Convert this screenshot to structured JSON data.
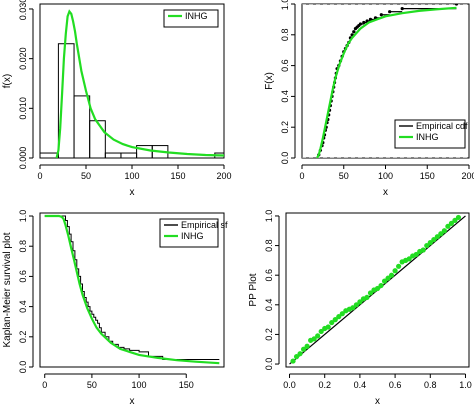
{
  "colors": {
    "fit": "#22dd22",
    "empirical": "#000000",
    "guide": "#888888",
    "point": "#000000"
  },
  "chart_data": [
    {
      "id": "density",
      "type": "histogram",
      "xlabel": "x",
      "ylabel": "f(x)",
      "xlim": [
        0,
        200
      ],
      "ylim": [
        0,
        0.031
      ],
      "xticks": [
        0,
        50,
        100,
        150,
        200
      ],
      "yticks": [
        0.0,
        0.01,
        0.02,
        0.03
      ],
      "ytick_labels": [
        "0.000",
        "0.010",
        "0.020",
        "0.030"
      ],
      "bins": [
        {
          "x0": 0,
          "x1": 20,
          "value": 0.001
        },
        {
          "x0": 20,
          "x1": 37,
          "value": 0.023
        },
        {
          "x0": 37,
          "x1": 54,
          "value": 0.0125
        },
        {
          "x0": 54,
          "x1": 71,
          "value": 0.0075
        },
        {
          "x0": 71,
          "x1": 88,
          "value": 0.001
        },
        {
          "x0": 88,
          "x1": 105,
          "value": 0.001
        },
        {
          "x0": 105,
          "x1": 122,
          "value": 0.0025
        },
        {
          "x0": 122,
          "x1": 139,
          "value": 0.0025
        },
        {
          "x0": 139,
          "x1": 156,
          "value": 0.0
        },
        {
          "x0": 156,
          "x1": 173,
          "value": 0.0
        },
        {
          "x0": 173,
          "x1": 190,
          "value": 0.0
        },
        {
          "x0": 190,
          "x1": 207,
          "value": 0.001
        }
      ],
      "fit": {
        "name": "INHG",
        "x": [
          18,
          20,
          22,
          24,
          26,
          28,
          30,
          32,
          34,
          36,
          38,
          40,
          45,
          50,
          55,
          60,
          70,
          80,
          90,
          100,
          120,
          140,
          160,
          180,
          200
        ],
        "y": [
          0.0,
          0.0015,
          0.006,
          0.013,
          0.02,
          0.025,
          0.0285,
          0.0295,
          0.029,
          0.0275,
          0.0255,
          0.023,
          0.0175,
          0.0135,
          0.01,
          0.0078,
          0.0052,
          0.0037,
          0.0028,
          0.0022,
          0.0015,
          0.0011,
          0.0008,
          0.0006,
          0.0005
        ]
      },
      "legend": {
        "position": "top-right",
        "entries": [
          "INHG"
        ]
      }
    },
    {
      "id": "cdf",
      "type": "line",
      "xlabel": "x",
      "ylabel": "F(x)",
      "xlim": [
        0,
        200
      ],
      "ylim": [
        0,
        1
      ],
      "xticks": [
        0,
        50,
        100,
        150,
        200
      ],
      "yticks": [
        0.0,
        0.2,
        0.4,
        0.6,
        0.8,
        1.0
      ],
      "ytick_labels": [
        "0.0",
        "0.2",
        "0.4",
        "0.6",
        "0.8",
        "1.0"
      ],
      "guides_y": [
        0,
        1
      ],
      "empirical": {
        "name": "Empirical cdf",
        "x": [
          20,
          22,
          24,
          25,
          26,
          27,
          28,
          29,
          30,
          31,
          32,
          33,
          34,
          35,
          36,
          37,
          38,
          39,
          40,
          41,
          42,
          44,
          46,
          48,
          50,
          52,
          54,
          56,
          58,
          60,
          62,
          64,
          66,
          68,
          70,
          74,
          78,
          82,
          88,
          95,
          105,
          120,
          185
        ],
        "y": [
          0.02,
          0.05,
          0.08,
          0.1,
          0.13,
          0.15,
          0.18,
          0.2,
          0.23,
          0.25,
          0.28,
          0.31,
          0.34,
          0.37,
          0.4,
          0.43,
          0.46,
          0.49,
          0.52,
          0.55,
          0.58,
          0.6,
          0.63,
          0.66,
          0.69,
          0.71,
          0.73,
          0.75,
          0.78,
          0.8,
          0.82,
          0.84,
          0.85,
          0.86,
          0.87,
          0.88,
          0.89,
          0.9,
          0.91,
          0.93,
          0.95,
          0.97,
          1.0
        ]
      },
      "fit": {
        "name": "INHG",
        "x": [
          18,
          20,
          22,
          25,
          28,
          31,
          34,
          37,
          40,
          45,
          50,
          55,
          60,
          70,
          80,
          90,
          100,
          120,
          140,
          160,
          185
        ],
        "y": [
          0.0,
          0.02,
          0.06,
          0.13,
          0.21,
          0.29,
          0.37,
          0.45,
          0.52,
          0.61,
          0.68,
          0.74,
          0.78,
          0.84,
          0.88,
          0.9,
          0.92,
          0.94,
          0.955,
          0.965,
          0.975
        ]
      },
      "legend": {
        "position": "bottom-right",
        "entries": [
          "Empirical cdf",
          "INHG"
        ]
      }
    },
    {
      "id": "survival",
      "type": "line",
      "xlabel": "x",
      "ylabel": "Kaplan-Meier survival plot",
      "xlim": [
        -5,
        190
      ],
      "ylim": [
        0,
        1.02
      ],
      "xticks": [
        0,
        50,
        100,
        150
      ],
      "yticks": [
        0.0,
        0.2,
        0.4,
        0.6,
        0.8,
        1.0
      ],
      "ytick_labels": [
        "0.0",
        "0.2",
        "0.4",
        "0.6",
        "0.8",
        "1.0"
      ],
      "empirical": {
        "name": "Empirical sf",
        "x": [
          0,
          20,
          22,
          24,
          26,
          28,
          30,
          32,
          34,
          36,
          38,
          40,
          42,
          44,
          46,
          48,
          50,
          52,
          54,
          56,
          58,
          60,
          64,
          68,
          72,
          78,
          84,
          90,
          100,
          110,
          125,
          185
        ],
        "y": [
          1.0,
          1.0,
          0.97,
          0.93,
          0.88,
          0.83,
          0.77,
          0.71,
          0.65,
          0.6,
          0.55,
          0.5,
          0.46,
          0.43,
          0.4,
          0.37,
          0.35,
          0.33,
          0.31,
          0.29,
          0.26,
          0.23,
          0.2,
          0.17,
          0.15,
          0.13,
          0.12,
          0.11,
          0.1,
          0.07,
          0.05,
          0.05
        ]
      },
      "fit": {
        "name": "INHG",
        "x": [
          0,
          15,
          18,
          20,
          22,
          25,
          28,
          31,
          34,
          37,
          40,
          45,
          50,
          55,
          60,
          70,
          80,
          90,
          100,
          120,
          140,
          160,
          185
        ],
        "y": [
          1.0,
          1.0,
          0.995,
          0.98,
          0.94,
          0.87,
          0.79,
          0.71,
          0.63,
          0.55,
          0.48,
          0.39,
          0.32,
          0.26,
          0.22,
          0.16,
          0.12,
          0.1,
          0.08,
          0.06,
          0.045,
          0.035,
          0.025
        ]
      },
      "legend": {
        "position": "top-right",
        "entries": [
          "Empirical sf",
          "INHG"
        ]
      }
    },
    {
      "id": "pp",
      "type": "scatter",
      "xlabel": "x",
      "ylabel": "PP Plot",
      "xlim": [
        -0.02,
        1.02
      ],
      "ylim": [
        -0.02,
        1.02
      ],
      "xticks": [
        0.0,
        0.2,
        0.4,
        0.6,
        0.8,
        1.0
      ],
      "xtick_labels": [
        "0.0",
        "0.2",
        "0.4",
        "0.6",
        "0.8",
        "1.0"
      ],
      "yticks": [
        0.0,
        0.2,
        0.4,
        0.6,
        0.8,
        1.0
      ],
      "ytick_labels": [
        "0.0",
        "0.2",
        "0.4",
        "0.6",
        "0.8",
        "1.0"
      ],
      "reference_line": [
        [
          0,
          0
        ],
        [
          1,
          1
        ]
      ],
      "points": {
        "x": [
          0.02,
          0.04,
          0.06,
          0.08,
          0.1,
          0.12,
          0.14,
          0.16,
          0.18,
          0.2,
          0.22,
          0.24,
          0.26,
          0.28,
          0.3,
          0.32,
          0.34,
          0.36,
          0.38,
          0.4,
          0.42,
          0.44,
          0.46,
          0.48,
          0.5,
          0.52,
          0.54,
          0.56,
          0.58,
          0.6,
          0.62,
          0.64,
          0.66,
          0.68,
          0.7,
          0.72,
          0.74,
          0.76,
          0.78,
          0.8,
          0.82,
          0.84,
          0.86,
          0.88,
          0.9,
          0.92,
          0.94,
          0.96
        ],
        "y": [
          0.02,
          0.05,
          0.07,
          0.1,
          0.12,
          0.16,
          0.17,
          0.19,
          0.22,
          0.24,
          0.25,
          0.28,
          0.3,
          0.32,
          0.34,
          0.36,
          0.37,
          0.38,
          0.4,
          0.42,
          0.44,
          0.45,
          0.48,
          0.5,
          0.51,
          0.53,
          0.56,
          0.58,
          0.6,
          0.63,
          0.66,
          0.69,
          0.7,
          0.71,
          0.73,
          0.74,
          0.76,
          0.77,
          0.8,
          0.82,
          0.84,
          0.86,
          0.88,
          0.9,
          0.93,
          0.95,
          0.97,
          0.99
        ]
      }
    }
  ]
}
